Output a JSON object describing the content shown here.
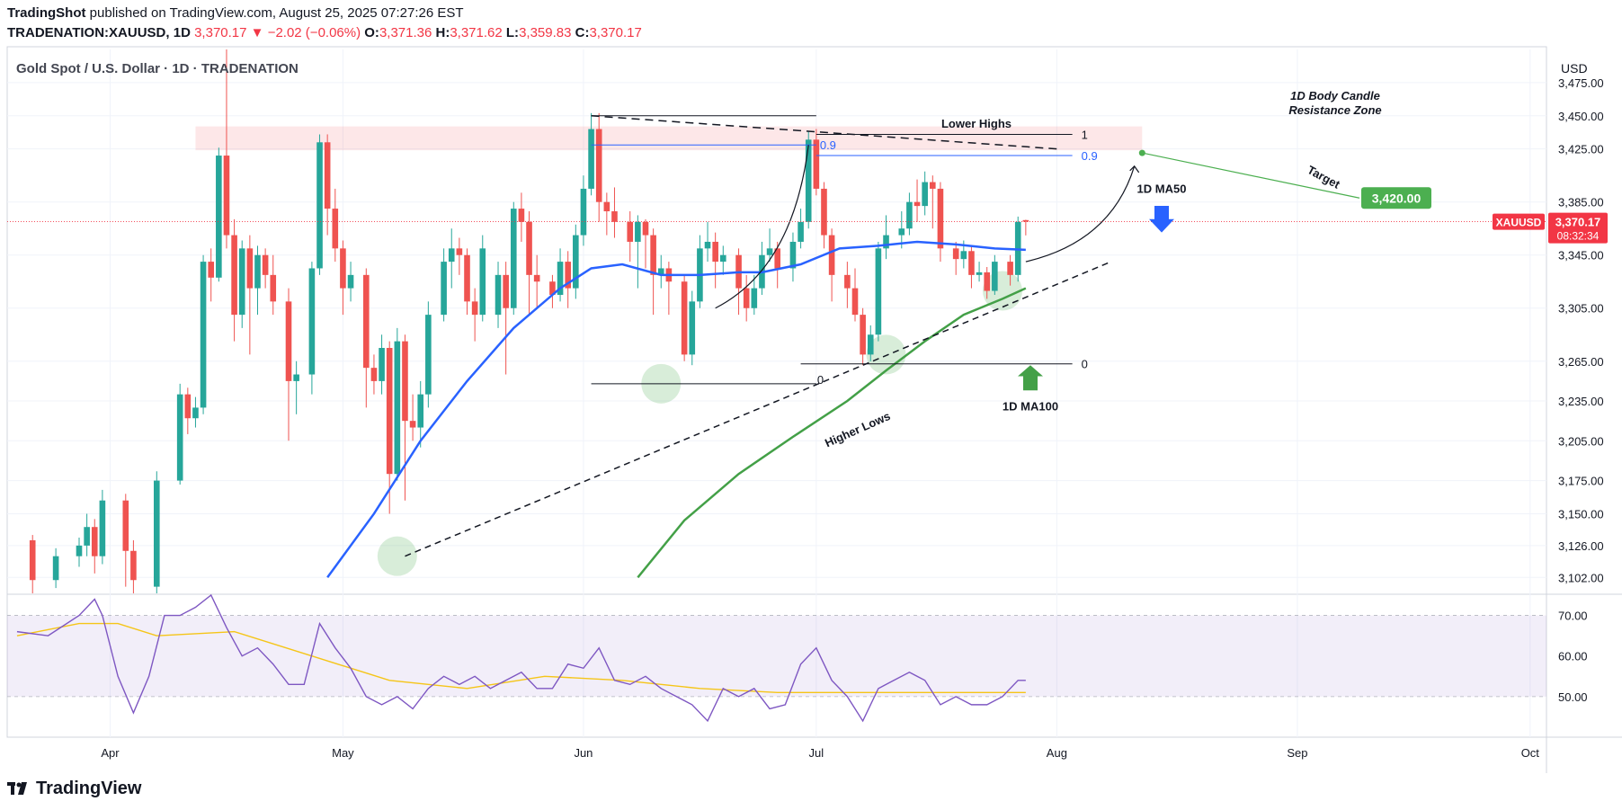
{
  "header": {
    "publisher": "TradingShot",
    "published_text": "published on TradingView.com, August 25, 2025 07:27:26 EST",
    "symbol": "TRADENATION:XAUUSD",
    "interval": "1D",
    "last": "3,370.17",
    "change": "−2.02 (−0.06%)",
    "o_label": "O:",
    "o": "3,371.36",
    "h_label": "H:",
    "h": "3,371.62",
    "l_label": "L:",
    "l": "3,359.83",
    "c_label": "C:",
    "c": "3,370.17"
  },
  "legend_title": "Gold Spot / U.S. Dollar · 1D · TRADENATION",
  "currency": "USD",
  "footer_brand": "TradingView",
  "colors": {
    "up": "#26a69a",
    "down": "#ef5350",
    "ma50": "#2962ff",
    "ma100": "#43a047",
    "rsi": "#7e57c2",
    "rsi_ma": "#f5c518",
    "price_tag": "#f23645",
    "target": "#4caf50"
  },
  "chart_data": {
    "type": "candlestick",
    "title": "Gold Spot / U.S. Dollar · 1D · TRADENATION",
    "y_range": [
      3090,
      3500
    ],
    "y_ticks": [
      3102,
      3126,
      3150,
      3175,
      3205,
      3235,
      3265,
      3305,
      3345,
      3385,
      3425,
      3450,
      3475
    ],
    "y_tick_labels": [
      "3,102.00",
      "3,126.00",
      "3,150.00",
      "3,175.00",
      "3,205.00",
      "3,235.00",
      "3,265.00",
      "3,305.00",
      "3,345.00",
      "3,385.00",
      "3,425.00",
      "3,450.00",
      "3,475.00"
    ],
    "x_labels": [
      {
        "label": "Apr",
        "day": 4
      },
      {
        "label": "May",
        "day": 34
      },
      {
        "label": "Jun",
        "day": 65
      },
      {
        "label": "Jul",
        "day": 95
      },
      {
        "label": "Aug",
        "day": 126
      },
      {
        "label": "Sep",
        "day": 157
      },
      {
        "label": "Oct",
        "day": 187
      }
    ],
    "last_price": "3,370.17",
    "countdown": "08:32:34",
    "symbol_tag": "XAUUSD",
    "candles": [
      [
        -6,
        3130,
        3100,
        3134,
        3085
      ],
      [
        -3,
        3100,
        3118,
        3124,
        3094
      ],
      [
        0,
        3118,
        3126,
        3132,
        3110
      ],
      [
        1,
        3126,
        3140,
        3150,
        3118
      ],
      [
        2,
        3140,
        3118,
        3146,
        3105
      ],
      [
        3,
        3118,
        3160,
        3168,
        3112
      ],
      [
        6,
        3160,
        3122,
        3165,
        3095
      ],
      [
        7,
        3122,
        3100,
        3130,
        3080
      ],
      [
        10,
        3095,
        3175,
        3182,
        3090
      ],
      [
        13,
        3175,
        3240,
        3248,
        3172
      ],
      [
        14,
        3240,
        3222,
        3245,
        3210
      ],
      [
        15,
        3222,
        3230,
        3238,
        3215
      ],
      [
        16,
        3230,
        3340,
        3345,
        3225
      ],
      [
        17,
        3340,
        3328,
        3350,
        3310
      ],
      [
        18,
        3328,
        3420,
        3426,
        3325
      ],
      [
        19,
        3420,
        3360,
        3500,
        3350
      ],
      [
        20,
        3360,
        3300,
        3372,
        3280
      ],
      [
        21,
        3300,
        3350,
        3356,
        3290
      ],
      [
        22,
        3350,
        3320,
        3360,
        3270
      ],
      [
        23,
        3320,
        3345,
        3352,
        3300
      ],
      [
        24,
        3345,
        3330,
        3350,
        3320
      ],
      [
        25,
        3330,
        3310,
        3345,
        3300
      ],
      [
        27,
        3310,
        3250,
        3320,
        3205
      ],
      [
        28,
        3250,
        3255,
        3265,
        3225
      ],
      [
        30,
        3255,
        3335,
        3340,
        3240
      ],
      [
        31,
        3335,
        3430,
        3436,
        3330
      ],
      [
        32,
        3430,
        3380,
        3436,
        3360
      ],
      [
        33,
        3380,
        3350,
        3395,
        3340
      ],
      [
        34,
        3350,
        3320,
        3356,
        3300
      ],
      [
        35,
        3320,
        3330,
        3340,
        3310
      ],
      [
        37,
        3330,
        3260,
        3335,
        3230
      ],
      [
        38,
        3260,
        3250,
        3270,
        3240
      ],
      [
        39,
        3250,
        3275,
        3285,
        3240
      ],
      [
        40,
        3275,
        3180,
        3280,
        3150
      ],
      [
        41,
        3180,
        3280,
        3290,
        3175
      ],
      [
        42,
        3280,
        3220,
        3285,
        3160
      ],
      [
        43,
        3220,
        3215,
        3240,
        3205
      ],
      [
        44,
        3215,
        3240,
        3250,
        3200
      ],
      [
        45,
        3240,
        3300,
        3310,
        3230
      ],
      [
        47,
        3300,
        3340,
        3350,
        3295
      ],
      [
        48,
        3340,
        3350,
        3365,
        3320
      ],
      [
        49,
        3350,
        3345,
        3358,
        3330
      ],
      [
        50,
        3345,
        3310,
        3350,
        3300
      ],
      [
        51,
        3310,
        3300,
        3320,
        3280
      ],
      [
        52,
        3300,
        3350,
        3360,
        3295
      ],
      [
        54,
        3300,
        3330,
        3340,
        3290
      ],
      [
        55,
        3330,
        3305,
        3340,
        3255
      ],
      [
        56,
        3305,
        3380,
        3385,
        3300
      ],
      [
        57,
        3380,
        3370,
        3392,
        3355
      ],
      [
        58,
        3370,
        3330,
        3378,
        3300
      ],
      [
        59,
        3330,
        3325,
        3345,
        3305
      ],
      [
        61,
        3325,
        3315,
        3330,
        3305
      ],
      [
        62,
        3315,
        3340,
        3350,
        3310
      ],
      [
        63,
        3340,
        3320,
        3348,
        3305
      ],
      [
        64,
        3320,
        3360,
        3368,
        3312
      ],
      [
        65,
        3360,
        3395,
        3405,
        3352
      ],
      [
        66,
        3395,
        3440,
        3452,
        3390
      ],
      [
        67,
        3440,
        3385,
        3452,
        3370
      ],
      [
        68,
        3385,
        3378,
        3392,
        3360
      ],
      [
        69,
        3378,
        3370,
        3396,
        3358
      ],
      [
        71,
        3370,
        3355,
        3378,
        3340
      ],
      [
        72,
        3355,
        3370,
        3375,
        3320
      ],
      [
        73,
        3370,
        3360,
        3372,
        3335
      ],
      [
        74,
        3360,
        3330,
        3365,
        3300
      ],
      [
        75,
        3330,
        3335,
        3345,
        3320
      ],
      [
        76,
        3335,
        3325,
        3340,
        3300
      ],
      [
        78,
        3325,
        3270,
        3330,
        3265
      ],
      [
        79,
        3270,
        3310,
        3318,
        3262
      ],
      [
        80,
        3310,
        3350,
        3360,
        3305
      ],
      [
        81,
        3350,
        3355,
        3370,
        3340
      ],
      [
        82,
        3355,
        3340,
        3362,
        3320
      ],
      [
        83,
        3340,
        3345,
        3352,
        3330
      ],
      [
        85,
        3345,
        3320,
        3350,
        3300
      ],
      [
        86,
        3320,
        3305,
        3330,
        3295
      ],
      [
        87,
        3305,
        3320,
        3330,
        3300
      ],
      [
        88,
        3320,
        3345,
        3355,
        3315
      ],
      [
        89,
        3345,
        3350,
        3365,
        3340
      ],
      [
        90,
        3350,
        3335,
        3355,
        3320
      ],
      [
        92,
        3335,
        3355,
        3362,
        3325
      ],
      [
        93,
        3355,
        3370,
        3380,
        3350
      ],
      [
        94,
        3370,
        3432,
        3438,
        3365
      ],
      [
        95,
        3432,
        3395,
        3440,
        3390
      ],
      [
        96,
        3395,
        3360,
        3400,
        3350
      ],
      [
        97,
        3360,
        3330,
        3365,
        3310
      ],
      [
        99,
        3330,
        3320,
        3340,
        3305
      ],
      [
        100,
        3320,
        3300,
        3335,
        3295
      ],
      [
        101,
        3300,
        3270,
        3305,
        3262
      ],
      [
        102,
        3270,
        3285,
        3292,
        3265
      ],
      [
        103,
        3285,
        3350,
        3355,
        3280
      ],
      [
        104,
        3350,
        3360,
        3375,
        3342
      ],
      [
        106,
        3360,
        3365,
        3378,
        3350
      ],
      [
        107,
        3365,
        3385,
        3392,
        3360
      ],
      [
        108,
        3385,
        3382,
        3402,
        3370
      ],
      [
        109,
        3382,
        3400,
        3408,
        3375
      ],
      [
        110,
        3400,
        3395,
        3405,
        3365
      ],
      [
        111,
        3395,
        3350,
        3400,
        3340
      ],
      [
        113,
        3350,
        3342,
        3355,
        3330
      ],
      [
        114,
        3342,
        3348,
        3356,
        3335
      ],
      [
        115,
        3348,
        3330,
        3352,
        3320
      ],
      [
        116,
        3330,
        3332,
        3340,
        3325
      ],
      [
        117,
        3332,
        3318,
        3336,
        3312
      ],
      [
        118,
        3318,
        3340,
        3345,
        3315
      ],
      [
        120,
        3340,
        3330,
        3345,
        3322
      ],
      [
        121,
        3330,
        3370,
        3374,
        3325
      ],
      [
        122,
        3371.36,
        3370.17,
        3371.62,
        3359.83
      ]
    ],
    "ma50": [
      [
        32,
        3102
      ],
      [
        38,
        3150
      ],
      [
        44,
        3205
      ],
      [
        50,
        3250
      ],
      [
        56,
        3290
      ],
      [
        62,
        3320
      ],
      [
        66,
        3335
      ],
      [
        70,
        3338
      ],
      [
        75,
        3330
      ],
      [
        80,
        3330
      ],
      [
        85,
        3332
      ],
      [
        88,
        3332
      ],
      [
        93,
        3338
      ],
      [
        98,
        3350
      ],
      [
        103,
        3352
      ],
      [
        108,
        3355
      ],
      [
        113,
        3353
      ],
      [
        118,
        3350
      ],
      [
        122,
        3349
      ]
    ],
    "ma100": [
      [
        72,
        3102
      ],
      [
        78,
        3145
      ],
      [
        85,
        3180
      ],
      [
        92,
        3208
      ],
      [
        99,
        3235
      ],
      [
        104,
        3258
      ],
      [
        109,
        3280
      ],
      [
        114,
        3300
      ],
      [
        119,
        3312
      ],
      [
        122,
        3320
      ]
    ],
    "higher_lows_line": [
      [
        42,
        3118
      ],
      [
        133,
        3340
      ]
    ],
    "lower_highs_line": [
      [
        66,
        3450
      ],
      [
        126,
        3425
      ]
    ],
    "resistance_zone": [
      3424,
      3442
    ],
    "fib_levels": [
      {
        "label": "0.9",
        "value": 3428
      },
      {
        "label": "0",
        "value": 3248
      },
      {
        "label": "1",
        "value": 3436
      },
      {
        "label": "0.9",
        "value": 3420
      },
      {
        "label": "0",
        "value": 3263
      }
    ],
    "target_value": "3,420.00",
    "annotations": {
      "lower_highs": "Lower Highs",
      "higher_lows": "Higher Lows",
      "resistance_line1": "1D Body Candle",
      "resistance_line2": "Resistance Zone",
      "ma50": "1D MA50",
      "ma100": "1D MA100",
      "target": "Target"
    },
    "rsi_range": [
      40,
      75
    ],
    "rsi_ticks": [
      50,
      60,
      70
    ],
    "rsi_tick_labels": [
      "50.00",
      "60.00",
      "70.00"
    ],
    "rsi_band": [
      50,
      70
    ],
    "rsi": [
      [
        -8,
        66
      ],
      [
        -4,
        65
      ],
      [
        0,
        70
      ],
      [
        2,
        74
      ],
      [
        3,
        70
      ],
      [
        5,
        55
      ],
      [
        7,
        46
      ],
      [
        9,
        55
      ],
      [
        11,
        70
      ],
      [
        13,
        70
      ],
      [
        15,
        72
      ],
      [
        17,
        75
      ],
      [
        19,
        67
      ],
      [
        21,
        60
      ],
      [
        23,
        62
      ],
      [
        25,
        58
      ],
      [
        27,
        53
      ],
      [
        29,
        53
      ],
      [
        31,
        68
      ],
      [
        33,
        62
      ],
      [
        35,
        57
      ],
      [
        37,
        50
      ],
      [
        39,
        48
      ],
      [
        41,
        50
      ],
      [
        43,
        47
      ],
      [
        45,
        52
      ],
      [
        47,
        55
      ],
      [
        49,
        53
      ],
      [
        51,
        55
      ],
      [
        53,
        52
      ],
      [
        55,
        54
      ],
      [
        57,
        56
      ],
      [
        59,
        52
      ],
      [
        61,
        52
      ],
      [
        63,
        58
      ],
      [
        65,
        57
      ],
      [
        67,
        62
      ],
      [
        69,
        54
      ],
      [
        71,
        53
      ],
      [
        73,
        55
      ],
      [
        75,
        52
      ],
      [
        77,
        50
      ],
      [
        79,
        48
      ],
      [
        81,
        44
      ],
      [
        83,
        52
      ],
      [
        85,
        50
      ],
      [
        87,
        52
      ],
      [
        89,
        47
      ],
      [
        91,
        48
      ],
      [
        93,
        58
      ],
      [
        95,
        62
      ],
      [
        97,
        54
      ],
      [
        99,
        50
      ],
      [
        101,
        44
      ],
      [
        103,
        52
      ],
      [
        105,
        54
      ],
      [
        107,
        56
      ],
      [
        109,
        54
      ],
      [
        111,
        48
      ],
      [
        113,
        50
      ],
      [
        115,
        48
      ],
      [
        117,
        48
      ],
      [
        119,
        50
      ],
      [
        121,
        54
      ],
      [
        122,
        54
      ]
    ],
    "rsi_ma": [
      [
        -8,
        65
      ],
      [
        0,
        68
      ],
      [
        5,
        68
      ],
      [
        10,
        65
      ],
      [
        20,
        66
      ],
      [
        30,
        60
      ],
      [
        40,
        54
      ],
      [
        50,
        52
      ],
      [
        60,
        55
      ],
      [
        70,
        54
      ],
      [
        80,
        52
      ],
      [
        90,
        51
      ],
      [
        100,
        51
      ],
      [
        110,
        51
      ],
      [
        120,
        51
      ],
      [
        122,
        51
      ]
    ]
  }
}
